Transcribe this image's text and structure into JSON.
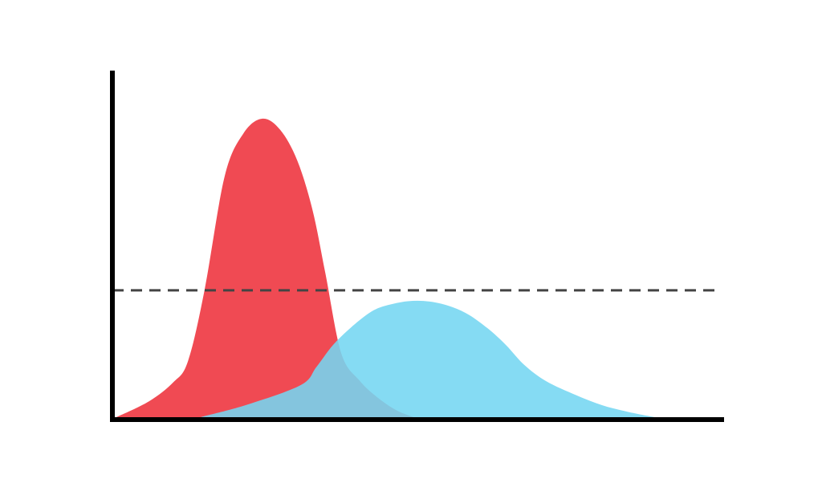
{
  "chart_data": {
    "type": "area",
    "xlim": [
      0,
      100
    ],
    "ylim": [
      0,
      100
    ],
    "series": [
      {
        "color": "#f04a53",
        "x": [
          0.7,
          6,
          10,
          12.4,
          15.1,
          18.4,
          21.5,
          24.6,
          27.5,
          30.3,
          32.8,
          34.9,
          37.5,
          40.5,
          43.4,
          46.5,
          49.3
        ],
        "values": [
          0.5,
          5,
          10.5,
          16.6,
          36.9,
          69.6,
          82,
          86.2,
          83,
          74.2,
          60,
          41.9,
          18.9,
          11,
          6.2,
          2.5,
          0.5
        ]
      },
      {
        "color": "#74d6f1",
        "x": [
          14.5,
          22,
          30.9,
          33.5,
          36.8,
          42.1,
          46,
          50,
          54,
          57.9,
          61.5,
          64.5,
          67.5,
          71.1,
          76,
          80.3,
          84.5,
          88.8
        ],
        "values": [
          0.5,
          4,
          9.7,
          15,
          22.4,
          30.4,
          33,
          33.9,
          33,
          30.4,
          26,
          21.2,
          15.5,
          10.8,
          6.8,
          3.9,
          2,
          0.5
        ]
      }
    ],
    "threshold": 36.9
  }
}
